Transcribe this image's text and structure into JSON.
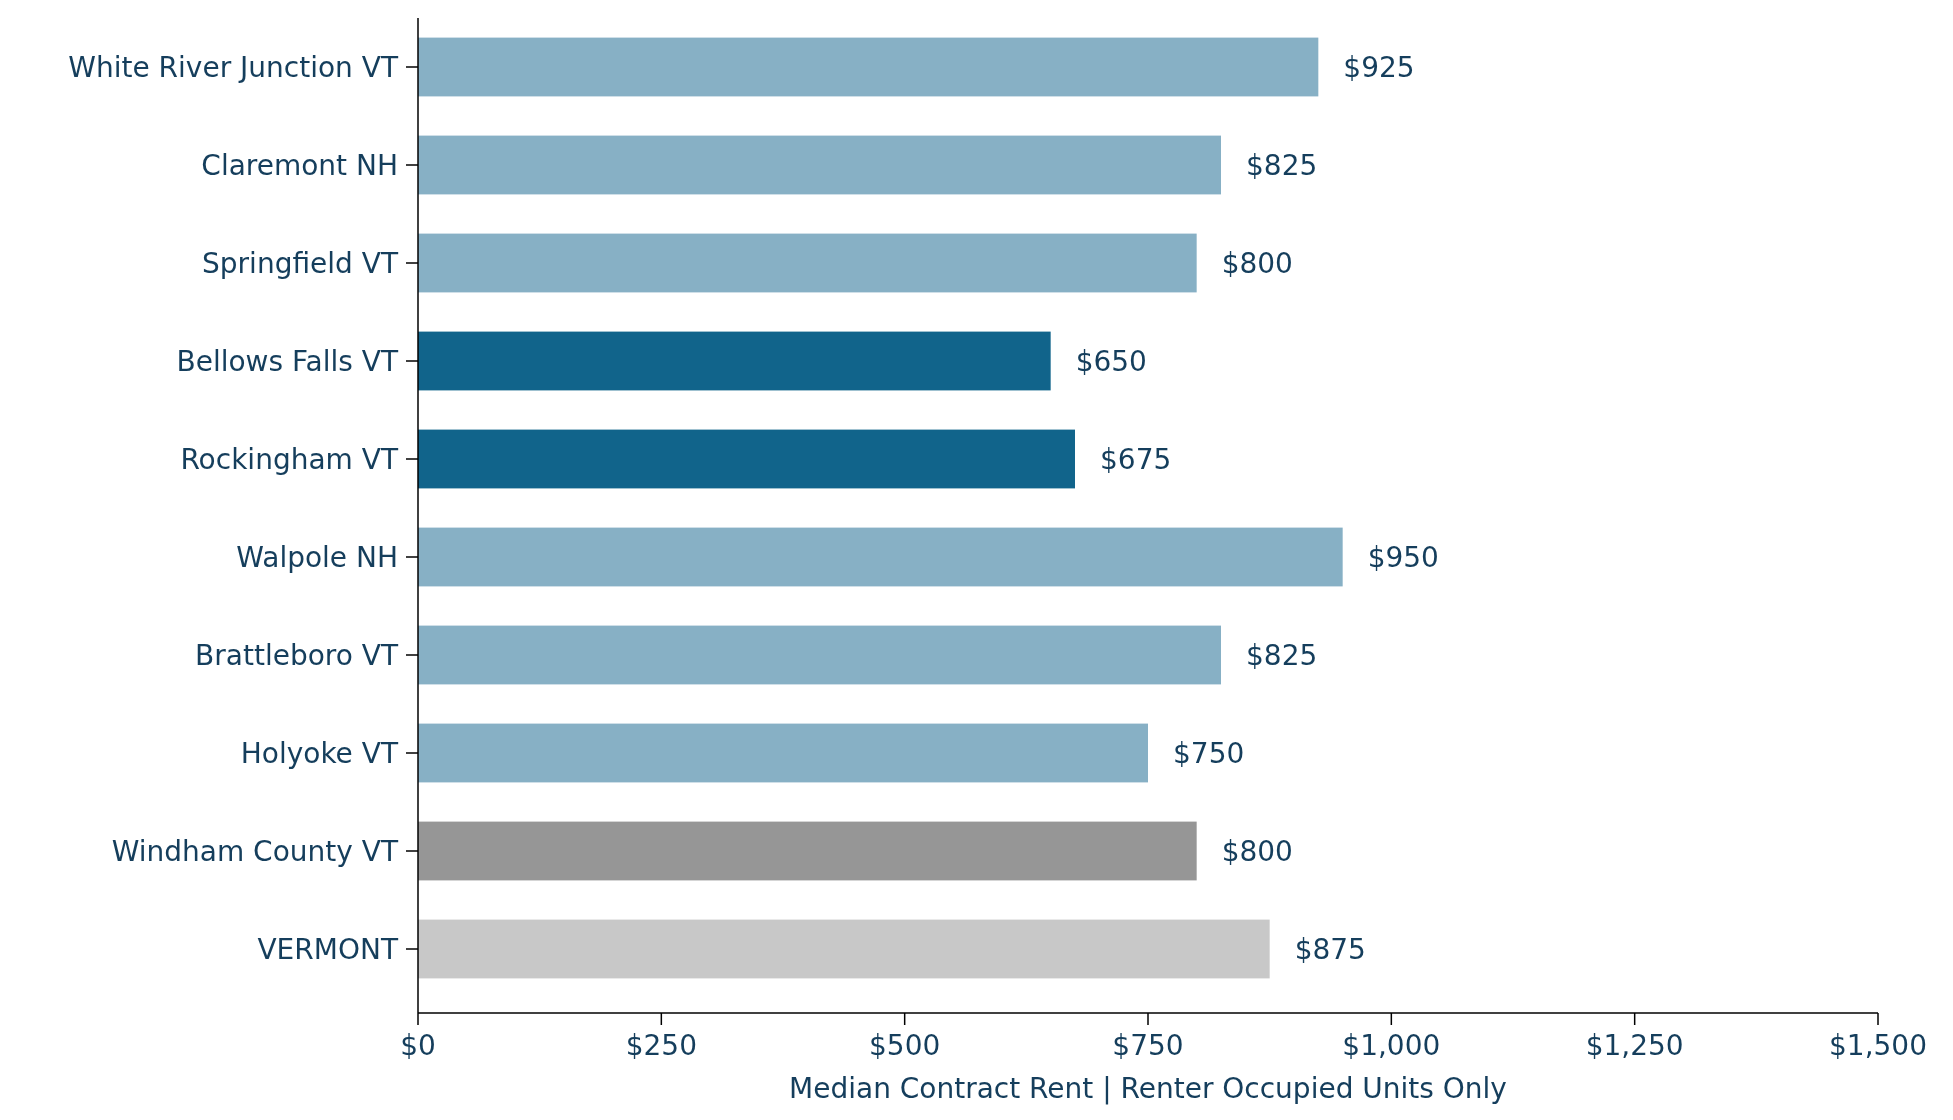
{
  "chart_data": {
    "type": "bar",
    "orientation": "horizontal",
    "xlabel": "Median Contract Rent | Renter Occupied Units Only",
    "categories": [
      "White River Junction VT",
      "Claremont NH",
      "Springfield VT",
      "Bellows Falls VT",
      "Rockingham VT",
      "Walpole NH",
      "Brattleboro VT",
      "Holyoke VT",
      "Windham County VT",
      "VERMONT"
    ],
    "values": [
      925,
      825,
      800,
      650,
      675,
      950,
      825,
      750,
      800,
      875
    ],
    "colors": [
      "#87b0c5",
      "#87b0c5",
      "#87b0c5",
      "#11648b",
      "#11648b",
      "#87b0c5",
      "#87b0c5",
      "#87b0c5",
      "#969696",
      "#c8c8c8"
    ],
    "value_labels": [
      "$925",
      "$825",
      "$800",
      "$650",
      "$675",
      "$950",
      "$825",
      "$750",
      "$800",
      "$875"
    ],
    "xlim": [
      0,
      1500
    ],
    "xticks": [
      {
        "value": 0,
        "label": "$0"
      },
      {
        "value": 250,
        "label": "$250"
      },
      {
        "value": 500,
        "label": "$500"
      },
      {
        "value": 750,
        "label": "$750"
      },
      {
        "value": 1000,
        "label": "$1,000"
      },
      {
        "value": 1250,
        "label": "$1,250"
      },
      {
        "value": 1500,
        "label": "$1,500"
      }
    ],
    "grid": false
  }
}
